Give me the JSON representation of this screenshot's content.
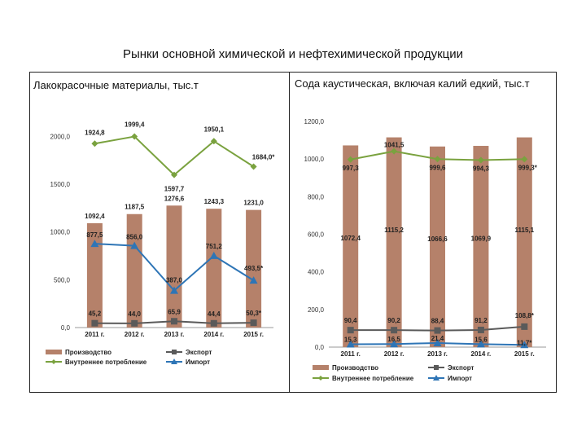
{
  "title": "Рынки основной химической и нефтехимической продукции",
  "chart_data": [
    {
      "type": "bar",
      "title": "Лакокрасочные материалы, тыс.т",
      "categories": [
        "2011 г.",
        "2012 г.",
        "2013 г.",
        "2014 г.",
        "2015 г."
      ],
      "ylim": [
        0,
        2200
      ],
      "y_ticks": [
        "0,0",
        "500,0",
        "1000,0",
        "1500,0",
        "2000,0"
      ],
      "y_tick_values": [
        0,
        500,
        1000,
        1500,
        2000
      ],
      "legend_position": "bottom",
      "series": [
        {
          "name": "Производство",
          "kind": "bar",
          "color": "#b5816a",
          "values": [
            1092.4,
            1187.5,
            1276.6,
            1243.3,
            1231.0
          ],
          "labels": [
            "1092,4",
            "1187,5",
            "1276,6",
            "1243,3",
            "1231,0"
          ]
        },
        {
          "name": "Экспорт",
          "kind": "line",
          "marker": "square",
          "color": "#5a5a5a",
          "values": [
            45.2,
            44.0,
            65.9,
            44.4,
            50.3
          ],
          "labels": [
            "45,2",
            "44,0",
            "65,9",
            "44,4",
            "50,3*"
          ]
        },
        {
          "name": "Внутреннее потребление",
          "kind": "line",
          "marker": "diamond",
          "color": "#7aa23f",
          "values": [
            1924.8,
            1999.4,
            1597.7,
            1950.1,
            1684.0
          ],
          "labels": [
            "1924,8",
            "1999,4",
            "1597,7",
            "1950,1",
            "1684,0*"
          ]
        },
        {
          "name": "Импорт",
          "kind": "line",
          "marker": "triangle",
          "color": "#2e75b6",
          "values": [
            877.5,
            856.0,
            387.0,
            751.2,
            493.5
          ],
          "labels": [
            "877,5",
            "856,0",
            "387,0",
            "751,2",
            "493,5*"
          ]
        }
      ]
    },
    {
      "type": "bar",
      "title": "Сода каустическая, включая калий едкий, тыс.т",
      "categories": [
        "2011 г.",
        "2012 г.",
        "2013 г.",
        "2014 г.",
        "2015 г."
      ],
      "ylim": [
        0,
        1200
      ],
      "y_ticks": [
        "0,0",
        "200,0",
        "400,0",
        "600,0",
        "800,0",
        "1000,0",
        "1200,0"
      ],
      "y_tick_values": [
        0,
        200,
        400,
        600,
        800,
        1000,
        1200
      ],
      "legend_position": "bottom",
      "series": [
        {
          "name": "Производство",
          "kind": "bar",
          "color": "#b5816a",
          "values": [
            1072.4,
            1115.2,
            1066.6,
            1069.9,
            1115.1
          ],
          "labels": [
            "1072,4",
            "1115,2",
            "1066,6",
            "1069,9",
            "1115,1"
          ]
        },
        {
          "name": "Экспорт",
          "kind": "line",
          "marker": "square",
          "color": "#5a5a5a",
          "values": [
            90.4,
            90.2,
            88.4,
            91.2,
            108.8
          ],
          "labels": [
            "90,4",
            "90,2",
            "88,4",
            "91,2",
            "108,8*"
          ]
        },
        {
          "name": "Внутреннее потребление",
          "kind": "line",
          "marker": "diamond",
          "color": "#7aa23f",
          "values": [
            997.3,
            1041.5,
            999.6,
            994.3,
            999.3
          ],
          "labels": [
            "997,3",
            "1041,5",
            "999,6",
            "994,3",
            "999,3*"
          ]
        },
        {
          "name": "Импорт",
          "kind": "line",
          "marker": "triangle",
          "color": "#2e75b6",
          "values": [
            15.3,
            16.5,
            21.4,
            15.6,
            11.7
          ],
          "labels": [
            "15,3",
            "16,5",
            "21,4",
            "15,6",
            "11,7*"
          ]
        }
      ]
    }
  ]
}
